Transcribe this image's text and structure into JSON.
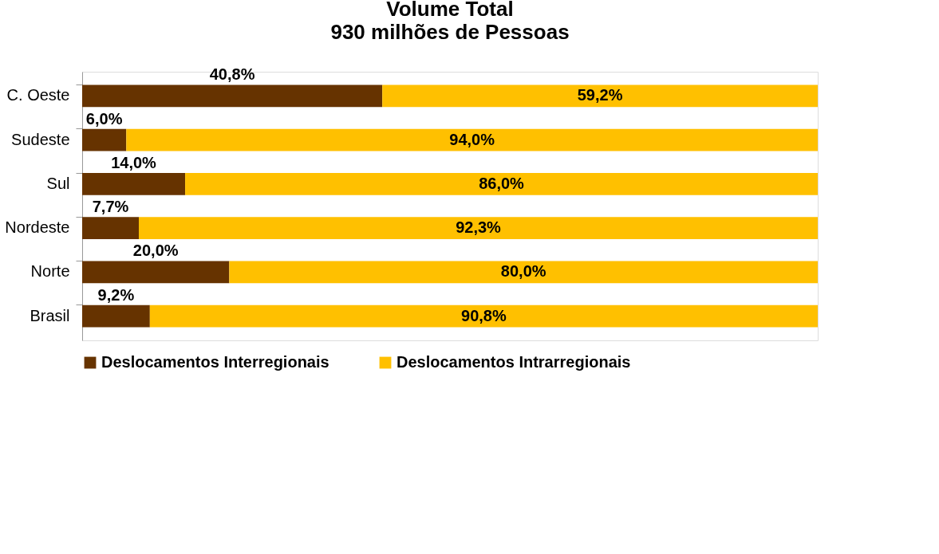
{
  "chart_data": {
    "type": "bar",
    "orientation": "horizontal",
    "stacked": true,
    "title": "Volume Total",
    "subtitle": "930 milhões de Pessoas",
    "categories": [
      "C. Oeste",
      "Sudeste",
      "Sul",
      "Nordeste",
      "Norte",
      "Brasil"
    ],
    "series": [
      {
        "name": "Deslocamentos Interregionais",
        "color": "#663300",
        "values": [
          40.8,
          6.0,
          14.0,
          7.7,
          20.0,
          9.2
        ],
        "value_labels": [
          "40,8%",
          "6,0%",
          "14,0%",
          "7,7%",
          "20,0%",
          "9,2%"
        ]
      },
      {
        "name": "Deslocamentos Intrarregionais",
        "color": "#ffc000",
        "values": [
          59.2,
          94.0,
          86.0,
          92.3,
          80.0,
          90.8
        ],
        "value_labels": [
          "59,2%",
          "94,0%",
          "86,0%",
          "92,3%",
          "80,0%",
          "90,8%"
        ]
      }
    ],
    "xlim": [
      0,
      100
    ],
    "grid": false,
    "legend": "bottom",
    "tick_labels": "y"
  }
}
